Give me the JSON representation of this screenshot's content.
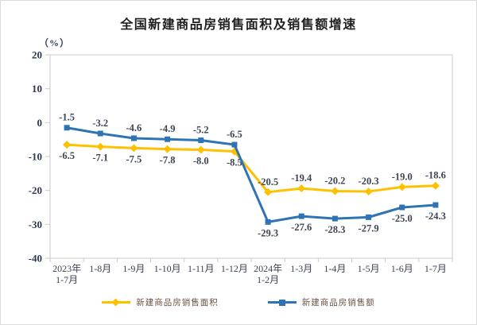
{
  "page": {
    "background": "#ffffff",
    "border_color": "#dcdcdc"
  },
  "header": {
    "title": "全国新建商品房销售面积及销售额增速",
    "unit_label": "（%）"
  },
  "chart_data": {
    "type": "line",
    "title": "全国新建商品房销售面积及销售额增速",
    "unit": "%",
    "categories": [
      "2023年\n1-7月",
      "1-8月",
      "1-9月",
      "1-10月",
      "1-11月",
      "1-12月",
      "2024年\n1-2月",
      "1-3月",
      "1-4月",
      "1-5月",
      "1-6月",
      "1-7月"
    ],
    "series": [
      {
        "name": "新建商品房销售面积",
        "color": "#FFC000",
        "marker": "diamond",
        "values": [
          -6.5,
          -7.1,
          -7.5,
          -7.8,
          -8.0,
          -8.5,
          -20.5,
          -19.4,
          -20.2,
          -20.3,
          -19.0,
          -18.6
        ],
        "label_sides": [
          "below",
          "below",
          "below",
          "below",
          "below",
          "below",
          "above",
          "above",
          "above",
          "above",
          "above",
          "above"
        ]
      },
      {
        "name": "新建商品房销售额",
        "color": "#2E74B5",
        "marker": "square",
        "values": [
          -1.5,
          -3.2,
          -4.6,
          -4.9,
          -5.2,
          -6.5,
          -29.3,
          -27.6,
          -28.3,
          -27.9,
          -25.0,
          -24.3
        ],
        "label_sides": [
          "above",
          "above",
          "above",
          "above",
          "above",
          "above",
          "below",
          "below",
          "below",
          "below",
          "below",
          "below"
        ]
      }
    ],
    "ylim": [
      -40,
      20
    ],
    "ytick_step": 10,
    "grid": false,
    "legend_position": "bottom",
    "axis_color": "#c9c9c9",
    "tick_label_color": "#2e3950",
    "data_label_color": "#3e4453",
    "legend_text_color": "#6a5243"
  }
}
